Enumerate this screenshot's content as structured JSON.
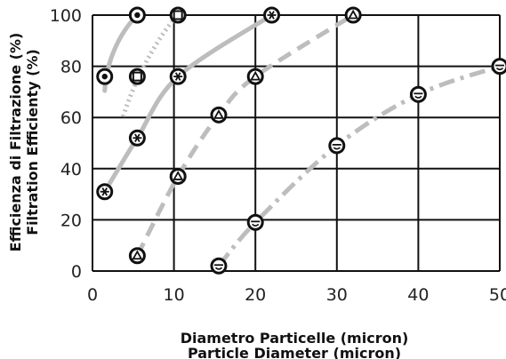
{
  "chart_data": {
    "type": "scatter",
    "title": "",
    "xlabel": "Diametro Particelle (micron)",
    "xlabel2": "Particle Diameter (micron)",
    "ylabel": "Efficienza di Filtrazione (%)",
    "ylabel2": "Filtration Efficienty (%)",
    "xlim": [
      0,
      50
    ],
    "ylim": [
      0,
      100
    ],
    "x_ticks": [
      0,
      10,
      20,
      30,
      40,
      50
    ],
    "y_ticks": [
      0,
      20,
      40,
      60,
      80,
      100
    ],
    "grid": true,
    "legend": "none",
    "series": [
      {
        "marker": "dot",
        "line_style": "solid",
        "color": "#bdbdbd",
        "marker_color": "#111111",
        "x": [
          1.5,
          5.5
        ],
        "y": [
          76,
          100
        ]
      },
      {
        "marker": "square",
        "line_style": "dotted",
        "color": "#bdbdbd",
        "marker_color": "#111111",
        "x": [
          5.5,
          10.5
        ],
        "y": [
          76,
          100
        ]
      },
      {
        "marker": "asterisk",
        "line_style": "solid",
        "color": "#bdbdbd",
        "marker_color": "#111111",
        "x": [
          1.5,
          5.5,
          10.5,
          22
        ],
        "y": [
          31,
          52,
          76,
          100
        ]
      },
      {
        "marker": "triangle",
        "line_style": "dashed",
        "color": "#bdbdbd",
        "marker_color": "#111111",
        "x": [
          5.5,
          10.5,
          15.5,
          20,
          32
        ],
        "y": [
          6,
          37,
          61,
          76,
          100
        ]
      },
      {
        "marker": "smiley",
        "line_style": "dashdot",
        "color": "#bdbdbd",
        "marker_color": "#111111",
        "x": [
          15.5,
          20,
          30,
          40,
          50
        ],
        "y": [
          2,
          19,
          49,
          69,
          80
        ]
      }
    ]
  }
}
